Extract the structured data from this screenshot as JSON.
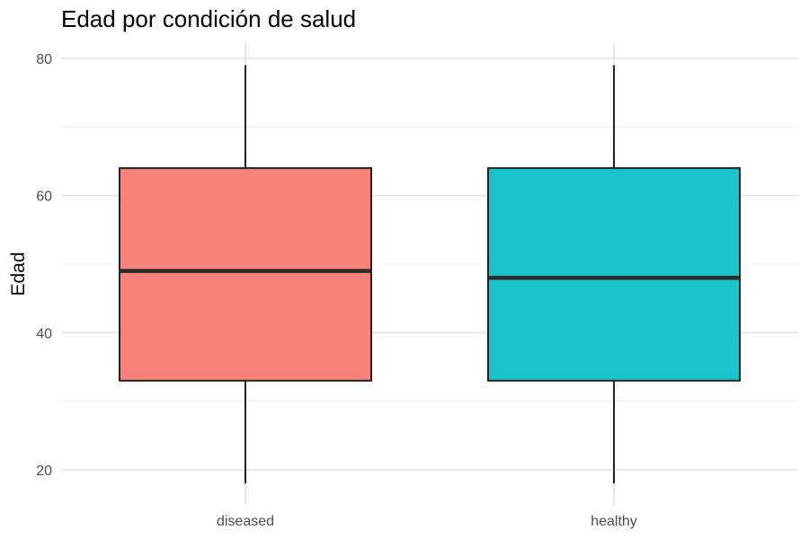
{
  "chart_data": {
    "type": "boxplot",
    "title": "Edad por condición de salud",
    "xlabel": "",
    "ylabel": "Edad",
    "ylim": [
      15,
      82
    ],
    "yticks": [
      20,
      40,
      60,
      80
    ],
    "grid": true,
    "categories": [
      "diseased",
      "healthy"
    ],
    "boxes": [
      {
        "category": "diseased",
        "min": 18,
        "q1": 33,
        "median": 49,
        "q3": 64,
        "max": 79,
        "color": "#F8766D"
      },
      {
        "category": "healthy",
        "min": 18,
        "q1": 33,
        "median": 48,
        "q3": 64,
        "max": 79,
        "color": "#00BFC4"
      }
    ]
  }
}
